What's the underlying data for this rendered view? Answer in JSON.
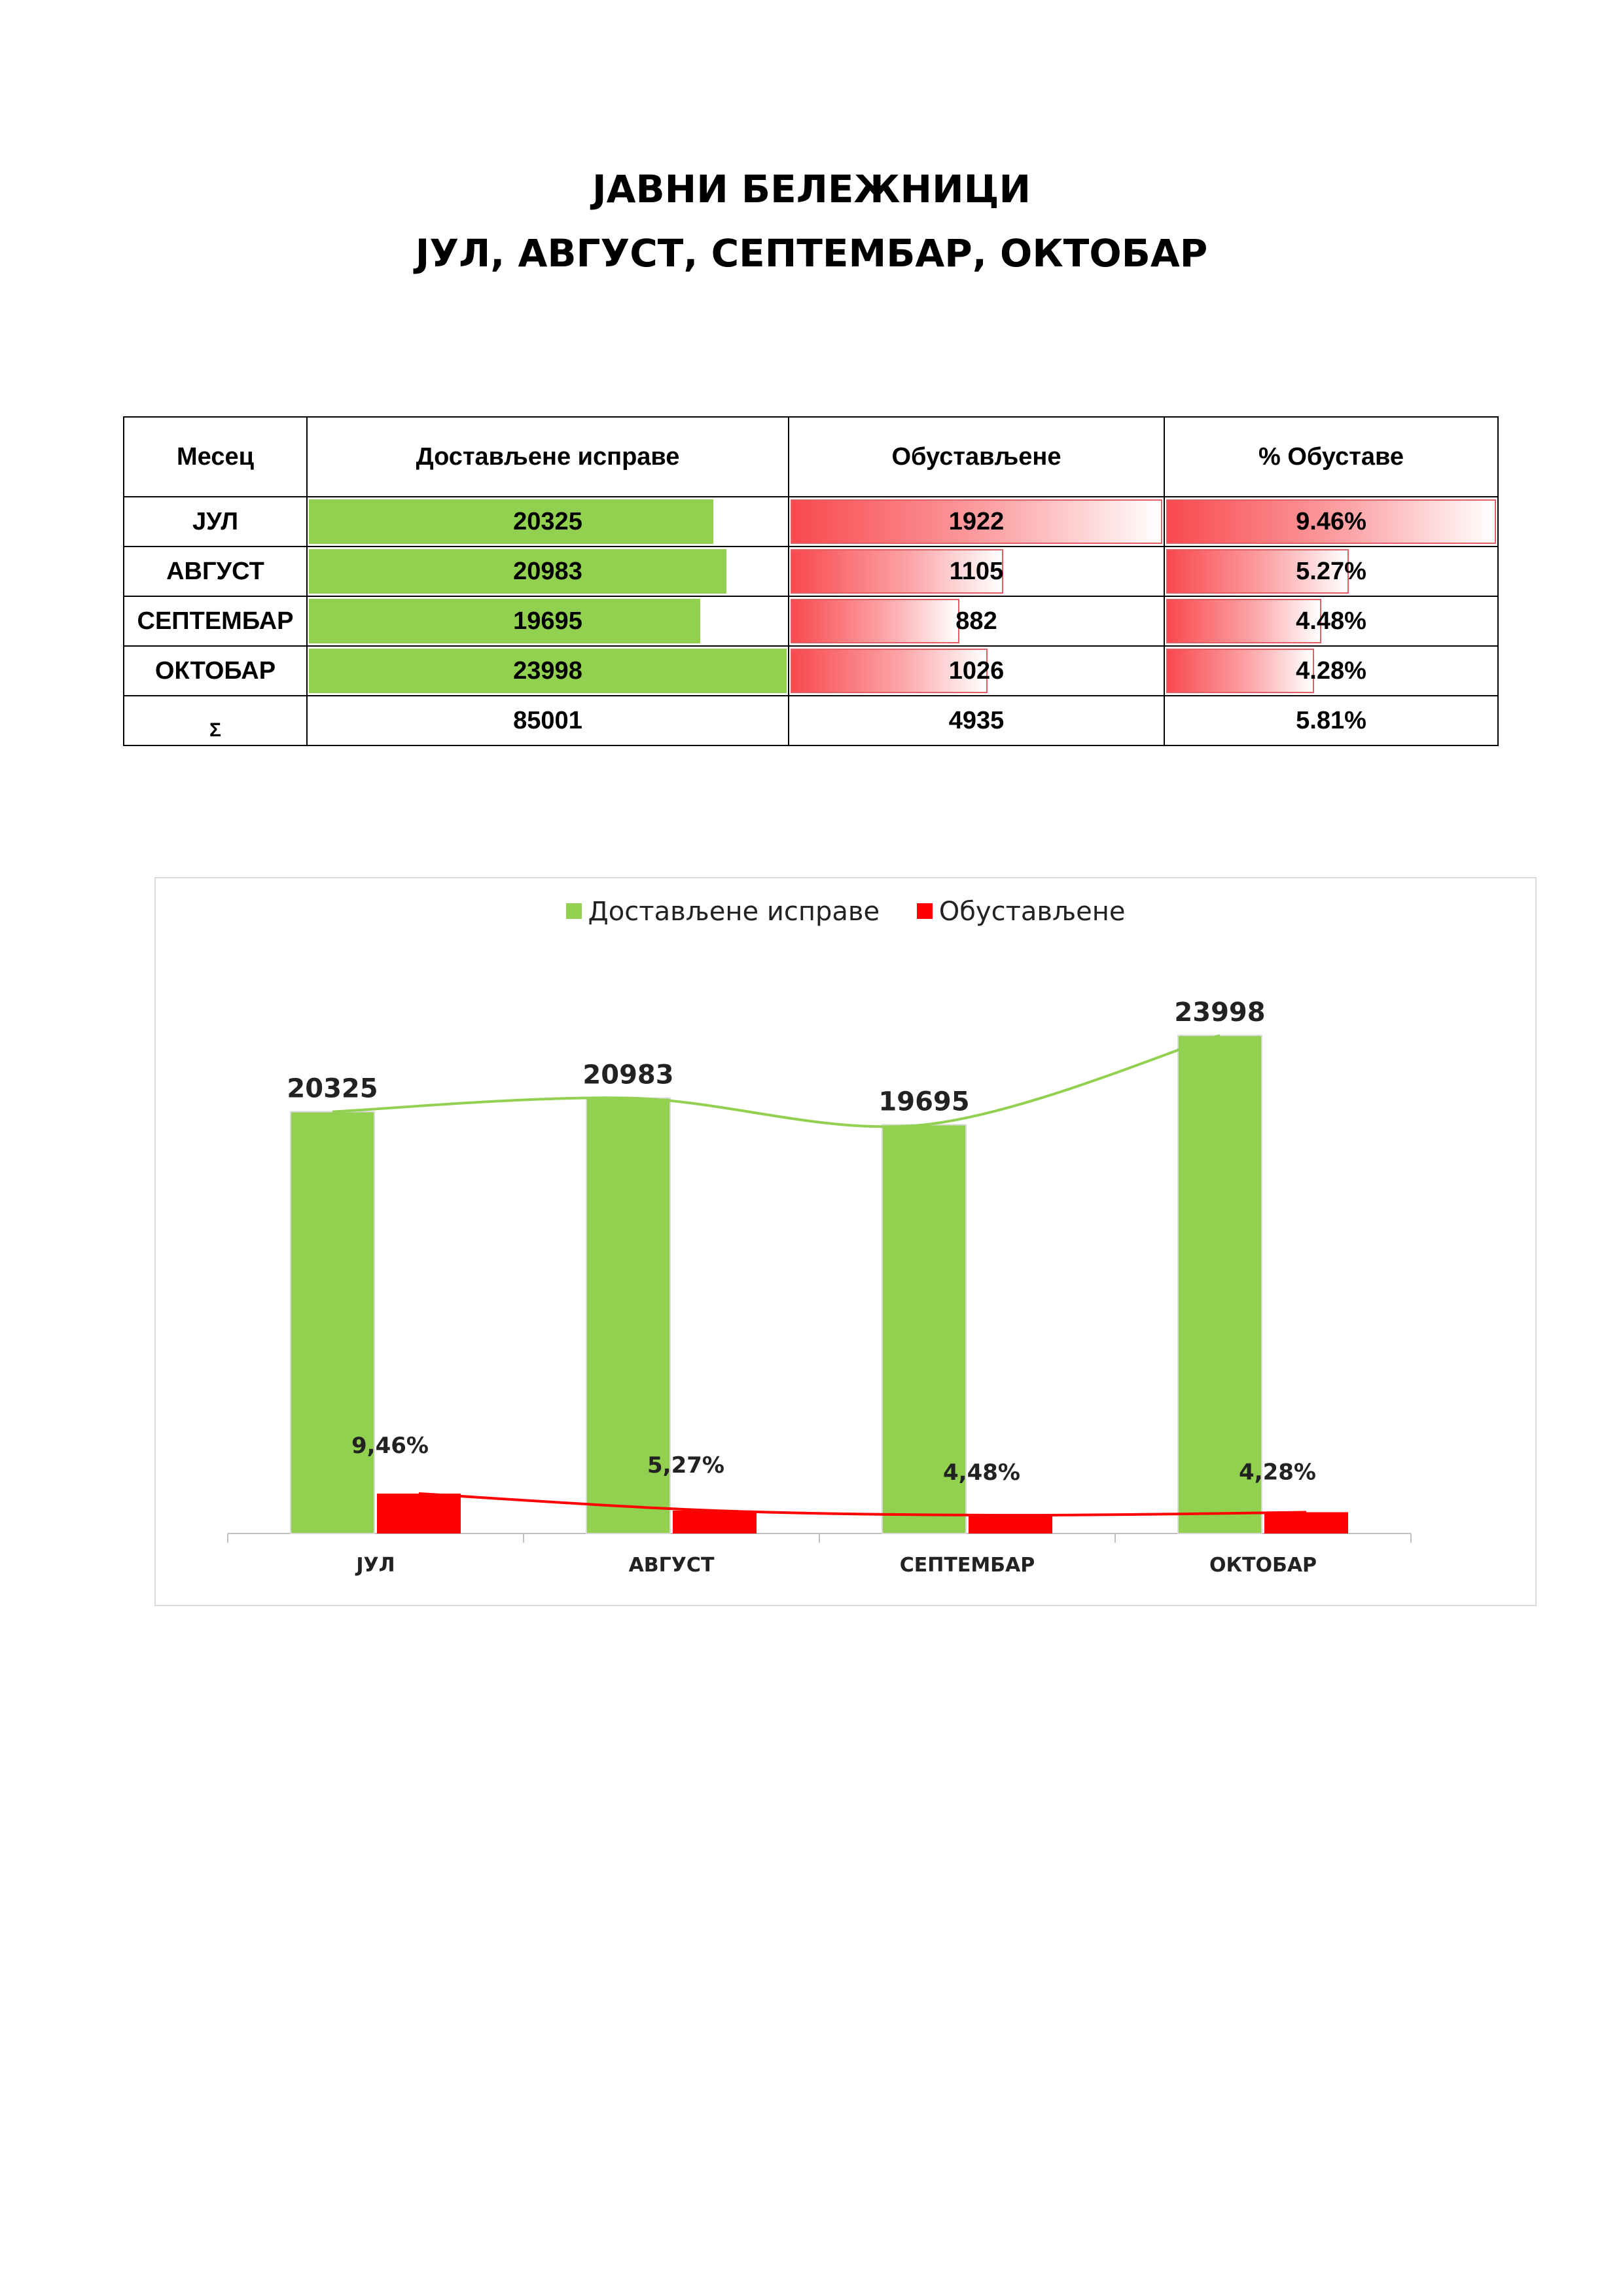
{
  "title": {
    "line1": "ЈАВНИ БЕЛЕЖНИЦИ",
    "line2": "ЈУЛ, АВГУСТ, СЕПТЕМБАР, ОКТОБАР"
  },
  "table": {
    "headers": [
      "Месец",
      "Достављене исправе",
      "Обустављене",
      "% Обуставе"
    ],
    "rows": [
      {
        "month": "ЈУЛ",
        "delivered": "20325",
        "suspended": "1922",
        "percent": "9.46%"
      },
      {
        "month": "АВГУСТ",
        "delivered": "20983",
        "suspended": "1105",
        "percent": "5.27%"
      },
      {
        "month": "СЕПТЕМБАР",
        "delivered": "19695",
        "suspended": "882",
        "percent": "4.48%"
      },
      {
        "month": "ОКТОБАР",
        "delivered": "23998",
        "suspended": "1026",
        "percent": "4.28%"
      }
    ],
    "total": {
      "month": "Σ",
      "delivered": "85001",
      "suspended": "4935",
      "percent": "5.81%"
    }
  },
  "colors": {
    "green": "#92d050",
    "red": "#ff0000",
    "green_line": "#92d050",
    "red_line": "#ff0000"
  },
  "chart_data": {
    "type": "bar",
    "categories": [
      "ЈУЛ",
      "АВГУСТ",
      "СЕПТЕМБАР",
      "ОКТОБАР"
    ],
    "series": [
      {
        "name": "Достављене исправе",
        "values": [
          20325,
          20983,
          19695,
          23998
        ],
        "labels": [
          "20325",
          "20983",
          "19695",
          "23998"
        ]
      },
      {
        "name": "Обустављене",
        "values": [
          1922,
          1105,
          882,
          1026
        ],
        "labels": [
          "9,46%",
          "5,27%",
          "4,48%",
          "4,28%"
        ]
      }
    ],
    "ylim": [
      0,
      24000
    ],
    "trendlines": true,
    "legend": "top",
    "grid": false
  }
}
